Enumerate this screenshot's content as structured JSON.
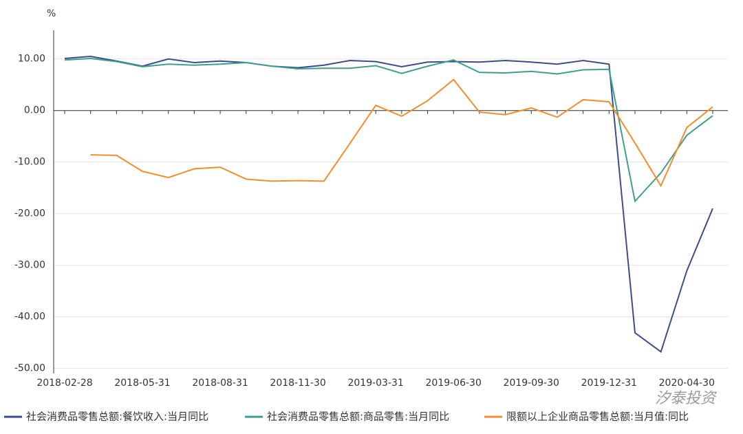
{
  "chart_data": {
    "type": "line",
    "y_unit": "%",
    "watermark": "汐泰投资",
    "categories": [
      "2018-02-28",
      null,
      null,
      "2018-05-31",
      null,
      null,
      "2018-08-31",
      null,
      null,
      "2018-11-30",
      null,
      null,
      "2019-03-31",
      null,
      null,
      "2019-06-30",
      null,
      null,
      "2019-09-30",
      null,
      null,
      "2019-12-31",
      null,
      null,
      "2020-04-30",
      null
    ],
    "series": [
      {
        "name": "社会消费品零售总额:餐饮收入:当月同比",
        "color": "#3d4b8c",
        "values": [
          10.1,
          10.5,
          9.6,
          8.6,
          10.0,
          9.3,
          9.6,
          9.3,
          8.6,
          8.3,
          8.8,
          9.7,
          9.5,
          8.5,
          9.4,
          9.5,
          9.4,
          9.7,
          9.4,
          9.0,
          9.7,
          9.0,
          -43.1,
          -46.8,
          -31.1,
          -19.0
        ]
      },
      {
        "name": "社会消费品零售总额:商品零售:当月同比",
        "color": "#3f9e8b",
        "values": [
          9.8,
          10.1,
          9.5,
          8.5,
          9.0,
          8.8,
          9.0,
          9.3,
          8.6,
          8.1,
          8.2,
          8.2,
          8.7,
          7.2,
          8.6,
          9.8,
          7.4,
          7.3,
          7.6,
          7.1,
          7.9,
          8.0,
          -17.6,
          -12.1,
          -4.8,
          -1.0
        ]
      },
      {
        "name": "限额以上企业商品零售总额:当月值:同比",
        "color": "#f48c2a",
        "values": [
          null,
          -8.6,
          -8.7,
          -11.8,
          -13.0,
          -11.3,
          -11.0,
          -13.3,
          -13.7,
          -13.6,
          -13.7,
          -6.4,
          1.0,
          -1.1,
          1.9,
          6.0,
          -0.3,
          -0.8,
          0.5,
          -1.3,
          2.1,
          1.7,
          -6.3,
          -14.6,
          -3.3,
          0.7
        ]
      }
    ],
    "ylim": [
      -51,
      14.5
    ],
    "yticks": [
      {
        "value": 10,
        "label": "10.00"
      },
      {
        "value": 0,
        "label": "0.00"
      },
      {
        "value": -10,
        "label": "-10.00"
      },
      {
        "value": -20,
        "label": "-20.00"
      },
      {
        "value": -30,
        "label": "-30.00"
      },
      {
        "value": -40,
        "label": "-40.00"
      },
      {
        "value": -50,
        "label": "-50.00"
      }
    ],
    "grid": true,
    "legend": "bottom"
  }
}
